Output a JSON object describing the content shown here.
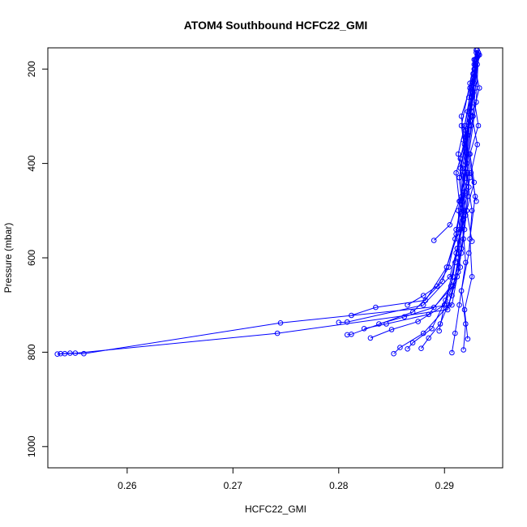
{
  "chart_data": {
    "type": "line",
    "title": "ATOM4 Southbound HCFC22_GMI",
    "xlabel": "HCFC22_GMI",
    "ylabel": "Pressure (mbar)",
    "xlim": [
      0.2525,
      0.2955
    ],
    "ylim": [
      1045,
      155
    ],
    "y_axis_inverted": true,
    "xticks": [
      0.26,
      0.27,
      0.28,
      0.29
    ],
    "xtick_labels": [
      "0.26",
      "0.27",
      "0.28",
      "0.29"
    ],
    "yticks": [
      200,
      400,
      600,
      800,
      1000
    ],
    "ytick_labels": [
      "200",
      "400",
      "600",
      "800",
      "1000"
    ],
    "grid": false,
    "legend": "none",
    "marker": "open-circle",
    "series_color": "#0000ff",
    "series": [
      {
        "x": [
          0.2537,
          0.2546,
          0.2559,
          0.2745,
          0.2907,
          0.2912,
          0.2918,
          0.2915,
          0.2921,
          0.2925,
          0.2923,
          0.2928,
          0.293
        ],
        "y": [
          803,
          802,
          803,
          738,
          700,
          640,
          560,
          480,
          400,
          320,
          260,
          200,
          165
        ]
      },
      {
        "x": [
          0.2534,
          0.2541,
          0.2551,
          0.2742,
          0.2903,
          0.2909,
          0.2916,
          0.2913,
          0.2919,
          0.2922,
          0.2926,
          0.2929
        ],
        "y": [
          804,
          803,
          802,
          760,
          710,
          650,
          590,
          500,
          420,
          340,
          250,
          180
        ]
      },
      {
        "x": [
          0.28,
          0.2808,
          0.288,
          0.2905,
          0.2912,
          0.2918,
          0.2914,
          0.292,
          0.2926,
          0.2931
        ],
        "y": [
          737,
          736,
          700,
          640,
          580,
          500,
          430,
          350,
          260,
          170
        ]
      },
      {
        "x": [
          0.2808,
          0.2812,
          0.287,
          0.2898,
          0.291,
          0.2917,
          0.2921,
          0.2916,
          0.2924,
          0.293
        ],
        "y": [
          763,
          762,
          715,
          650,
          560,
          480,
          400,
          320,
          230,
          160
        ]
      },
      {
        "x": [
          0.2812,
          0.2835,
          0.2882,
          0.2902,
          0.2914,
          0.2919,
          0.2913,
          0.2922,
          0.2927
        ],
        "y": [
          722,
          705,
          690,
          620,
          540,
          460,
          380,
          290,
          210
        ]
      },
      {
        "x": [
          0.2824,
          0.2845,
          0.2885,
          0.2906,
          0.2911,
          0.292,
          0.2917,
          0.2925,
          0.2929
        ],
        "y": [
          750,
          740,
          720,
          660,
          590,
          510,
          410,
          300,
          190
        ]
      },
      {
        "x": [
          0.283,
          0.285,
          0.2875,
          0.29,
          0.2915,
          0.2911,
          0.2921,
          0.2918,
          0.2928
        ],
        "y": [
          770,
          752,
          735,
          700,
          620,
          540,
          440,
          350,
          230
        ]
      },
      {
        "x": [
          0.2838,
          0.2862,
          0.289,
          0.2908,
          0.2916,
          0.2922,
          0.2915,
          0.2926,
          0.2931
        ],
        "y": [
          740,
          725,
          705,
          660,
          580,
          470,
          390,
          280,
          175
        ]
      },
      {
        "x": [
          0.2852,
          0.2858,
          0.288,
          0.2904,
          0.2913,
          0.2919,
          0.2923,
          0.292,
          0.2932
        ],
        "y": [
          803,
          790,
          760,
          700,
          630,
          540,
          450,
          330,
          165
        ]
      },
      {
        "x": [
          0.2865,
          0.287,
          0.2888,
          0.2901,
          0.291,
          0.2918,
          0.2914,
          0.2924,
          0.2929
        ],
        "y": [
          793,
          780,
          750,
          690,
          610,
          520,
          430,
          310,
          200
        ]
      },
      {
        "x": [
          0.2878,
          0.2885,
          0.2896,
          0.2907,
          0.2913,
          0.2917,
          0.2922,
          0.2919,
          0.2927
        ],
        "y": [
          792,
          770,
          740,
          680,
          600,
          510,
          420,
          320,
          220
        ]
      },
      {
        "x": [
          0.2865,
          0.288,
          0.2893,
          0.2904,
          0.2911,
          0.2916,
          0.2921,
          0.2925,
          0.293
        ],
        "y": [
          700,
          680,
          660,
          620,
          550,
          470,
          380,
          290,
          180
        ]
      },
      {
        "x": [
          0.2895,
          0.29,
          0.2908,
          0.2912,
          0.2918,
          0.2915,
          0.2923,
          0.2928
        ],
        "y": [
          755,
          700,
          640,
          580,
          500,
          410,
          320,
          210
        ]
      },
      {
        "x": [
          0.2907,
          0.291,
          0.2914,
          0.292,
          0.2917,
          0.2924,
          0.2921,
          0.2929
        ],
        "y": [
          801,
          760,
          700,
          610,
          520,
          430,
          340,
          240
        ]
      },
      {
        "x": [
          0.2918,
          0.292,
          0.2916,
          0.2923,
          0.2926,
          0.292,
          0.2927,
          0.2931
        ],
        "y": [
          795,
          740,
          670,
          590,
          500,
          410,
          300,
          190
        ]
      },
      {
        "x": [
          0.2922,
          0.2919,
          0.2926,
          0.2924,
          0.2929,
          0.2923,
          0.293,
          0.2932
        ],
        "y": [
          772,
          710,
          640,
          560,
          470,
          380,
          270,
          170
        ]
      },
      {
        "x": [
          0.289,
          0.2905,
          0.2914,
          0.2911,
          0.2919,
          0.2916,
          0.2924,
          0.2928
        ],
        "y": [
          563,
          530,
          480,
          420,
          360,
          300,
          240,
          180
        ]
      },
      {
        "x": [
          0.2926,
          0.2921,
          0.2928,
          0.2924,
          0.2932,
          0.2927,
          0.2933
        ],
        "y": [
          565,
          500,
          440,
          380,
          320,
          250,
          170
        ]
      },
      {
        "x": [
          0.293,
          0.2925,
          0.2931,
          0.2926,
          0.2933,
          0.2928,
          0.2931
        ],
        "y": [
          480,
          420,
          360,
          300,
          240,
          190,
          160
        ]
      }
    ]
  }
}
